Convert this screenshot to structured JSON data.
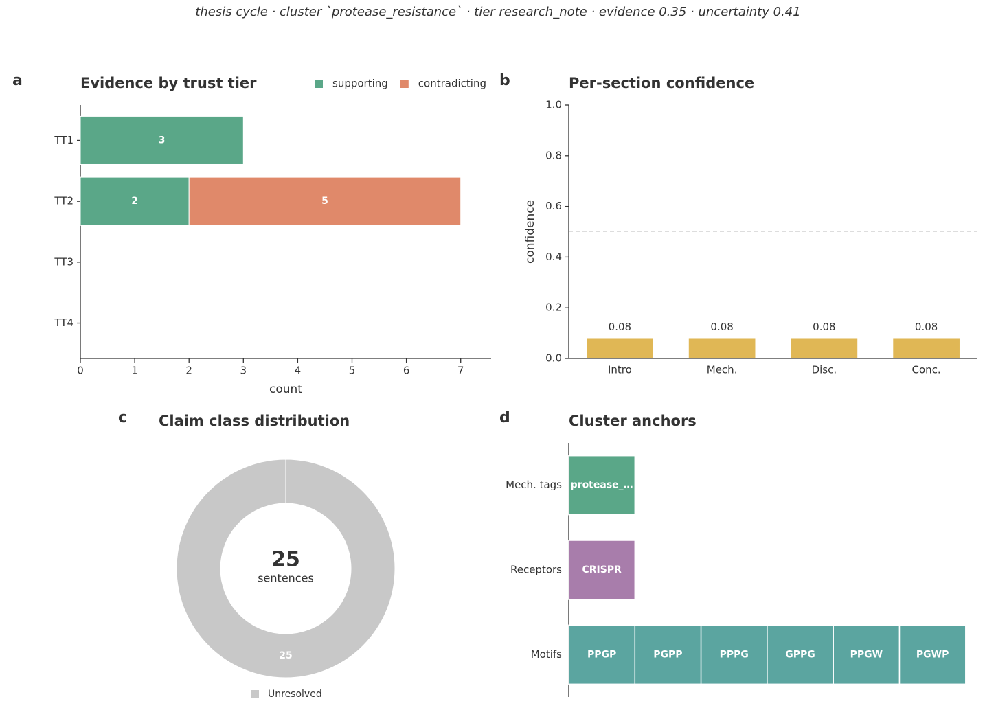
{
  "title": "thesis cycle · cluster `protease_resistance` · tier research_note · evidence 0.35 · uncertainty 0.41",
  "chart_data": [
    {
      "type": "hbar",
      "panel": "a",
      "title": "Evidence by trust tier",
      "xlabel": "count",
      "categories": [
        "TT1",
        "TT2",
        "TT3",
        "TT4"
      ],
      "series": [
        {
          "name": "supporting",
          "color": "#5aa788",
          "values": [
            3,
            2,
            0,
            0
          ]
        },
        {
          "name": "contradicting",
          "color": "#e0896a",
          "values": [
            0,
            5,
            0,
            0
          ]
        }
      ],
      "stacked": true,
      "xlim": [
        0,
        7.56
      ],
      "xticks": [
        0,
        1,
        2,
        3,
        4,
        5,
        6,
        7
      ],
      "legend": "upper right"
    },
    {
      "type": "bar",
      "panel": "b",
      "title": "Per-section confidence",
      "ylabel": "confidence",
      "categories": [
        "Intro",
        "Mech.",
        "Disc.",
        "Conc."
      ],
      "values": [
        0.08,
        0.08,
        0.08,
        0.08
      ],
      "color": "#e0b755",
      "ylim": [
        0,
        1
      ],
      "yticks": [
        {
          "value": 0,
          "label": "0.0"
        },
        0.2,
        0.4,
        0.6,
        0.8,
        {
          "value": 1,
          "label": "1.0"
        }
      ],
      "reference_line": 0.5
    },
    {
      "type": "donut",
      "panel": "c",
      "title": "Claim class distribution",
      "categories": [
        "Unresolved"
      ],
      "values": [
        25
      ],
      "colors": [
        "#c8c8c8"
      ],
      "center_value": 25,
      "center_label": "sentences",
      "legend": "lower center"
    },
    {
      "type": "tiles",
      "panel": "d",
      "title": "Cluster anchors",
      "rows": [
        {
          "name": "Mech. tags",
          "color": "#5aa788",
          "items": [
            "protease_…"
          ]
        },
        {
          "name": "Receptors",
          "color": "#a87dab",
          "items": [
            "CRISPR"
          ]
        },
        {
          "name": "Motifs",
          "color": "#5ba5a0",
          "items": [
            "PPGP",
            "PGPP",
            "PPPG",
            "GPPG",
            "PPGW",
            "PGWP"
          ]
        }
      ]
    }
  ]
}
